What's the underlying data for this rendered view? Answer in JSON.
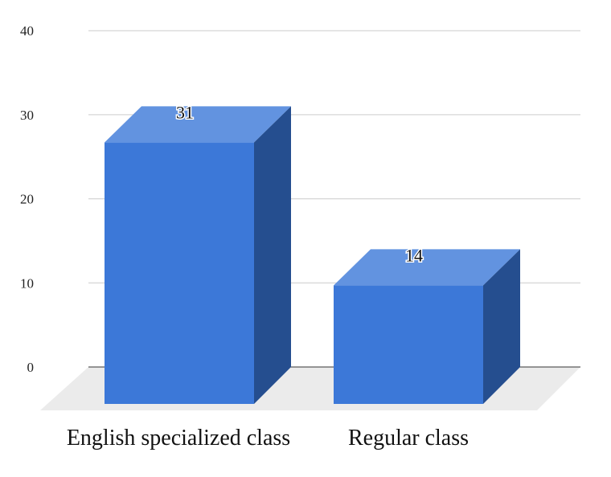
{
  "chart_data": {
    "type": "bar",
    "style": "3d",
    "categories": [
      "English specialized class",
      "Regular class"
    ],
    "values": [
      31,
      14
    ],
    "data_labels": [
      "31",
      "14"
    ],
    "title": "",
    "xlabel": "",
    "ylabel": "",
    "ylim": [
      0,
      40
    ],
    "yticks": [
      "0",
      "10",
      "20",
      "30",
      "40"
    ],
    "grid": true,
    "legend": "none",
    "colors": {
      "front": "#3c78d8",
      "top": "#6293e0",
      "side": "#254e8f",
      "floor": "#ebebeb",
      "grid": "#cccccc"
    }
  }
}
